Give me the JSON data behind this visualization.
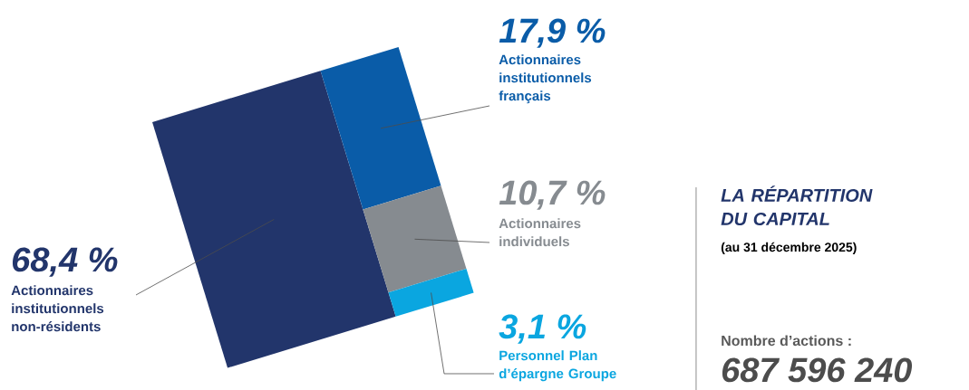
{
  "chart_data": {
    "type": "other",
    "title": "LA RÉPARTITION DU CAPITAL",
    "subtitle": "(au 31 décembre 2025)",
    "categories": [
      "Actionnaires institutionnels non-résidents",
      "Actionnaires institutionnels français",
      "Actionnaires individuels",
      "Personnel Plan d’épargne Groupe"
    ],
    "values": [
      68.4,
      17.9,
      10.7,
      3.1
    ],
    "colors": [
      "#22356b",
      "#0a5ca8",
      "#868b90",
      "#0aa6e0"
    ],
    "value_labels": [
      "68,4 %",
      "17,9 %",
      "10,7 %",
      "3,1 %"
    ],
    "annotations": [
      "Nombre d’actions :",
      "687 596 240"
    ]
  }
}
